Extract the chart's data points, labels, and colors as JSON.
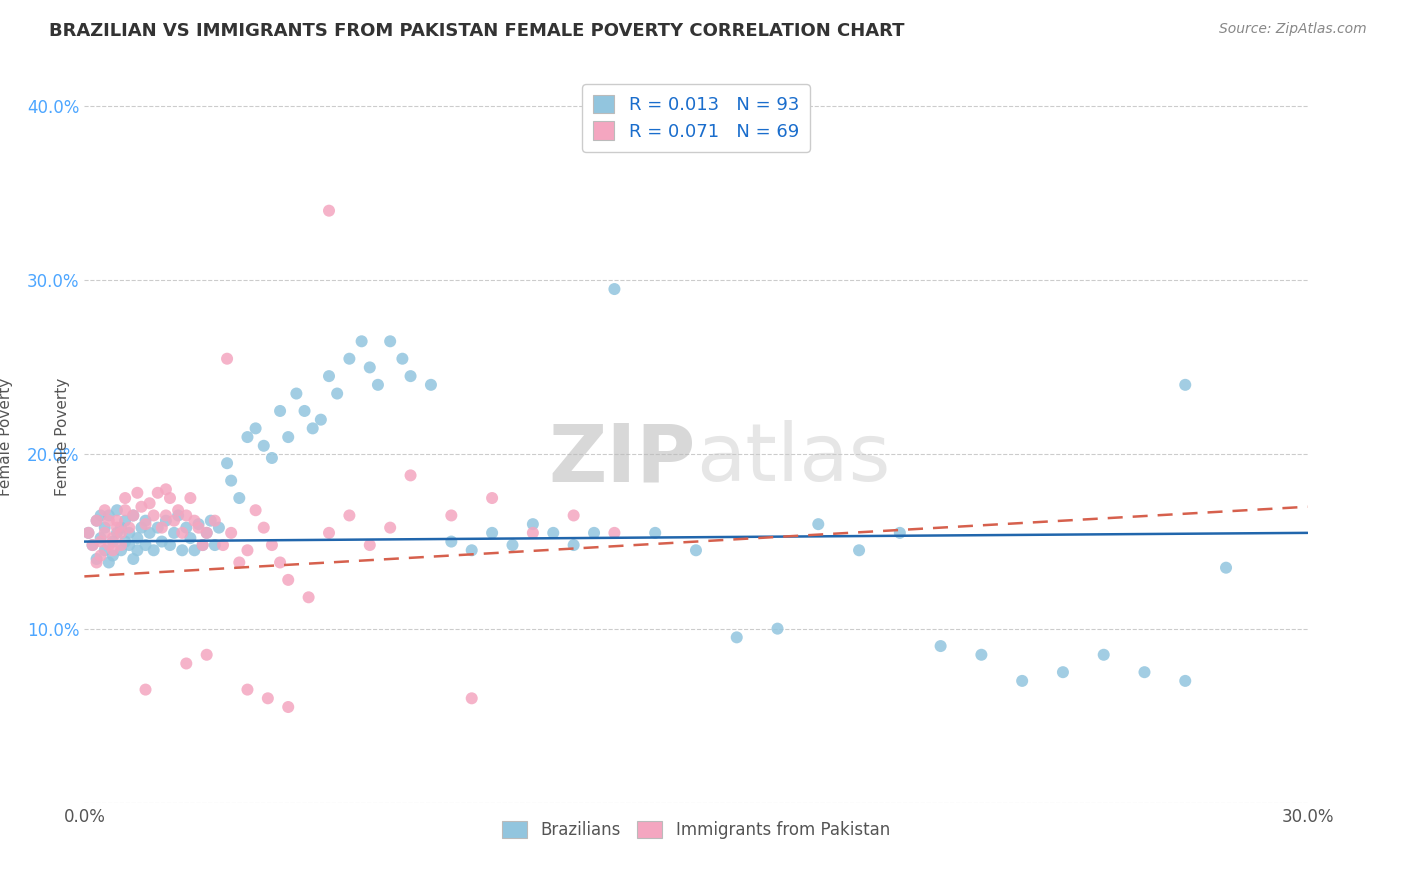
{
  "title": "BRAZILIAN VS IMMIGRANTS FROM PAKISTAN FEMALE POVERTY CORRELATION CHART",
  "source": "Source: ZipAtlas.com",
  "ylabel": "Female Poverty",
  "xlim": [
    0.0,
    0.3
  ],
  "ylim": [
    0.0,
    0.42
  ],
  "xtick_positions": [
    0.0,
    0.05,
    0.1,
    0.15,
    0.2,
    0.25,
    0.3
  ],
  "xtick_labels": [
    "0.0%",
    "",
    "",
    "",
    "",
    "",
    "30.0%"
  ],
  "ytick_positions": [
    0.0,
    0.1,
    0.2,
    0.3,
    0.4
  ],
  "ytick_labels": [
    "",
    "10.0%",
    "20.0%",
    "30.0%",
    "40.0%"
  ],
  "legend_labels": [
    "Brazilians",
    "Immigrants from Pakistan"
  ],
  "r_brazilian": 0.013,
  "n_brazilian": 93,
  "r_pakistan": 0.071,
  "n_pakistan": 69,
  "blue_color": "#92c5de",
  "pink_color": "#f4a6c0",
  "blue_line_color": "#2166ac",
  "pink_line_color": "#d6604d",
  "bg_color": "#ffffff",
  "grid_color": "#cccccc",
  "title_color": "#333333",
  "source_color": "#888888",
  "tick_color_y": "#4da6ff",
  "tick_color_x": "#555555",
  "ylabel_color": "#555555",
  "watermark_color": "#d0d0d0",
  "brazilians_x": [
    0.001,
    0.002,
    0.003,
    0.003,
    0.004,
    0.004,
    0.005,
    0.005,
    0.006,
    0.006,
    0.007,
    0.007,
    0.008,
    0.008,
    0.009,
    0.009,
    0.01,
    0.01,
    0.011,
    0.011,
    0.012,
    0.012,
    0.013,
    0.013,
    0.014,
    0.015,
    0.015,
    0.016,
    0.017,
    0.018,
    0.019,
    0.02,
    0.021,
    0.022,
    0.023,
    0.024,
    0.025,
    0.026,
    0.027,
    0.028,
    0.029,
    0.03,
    0.031,
    0.032,
    0.033,
    0.035,
    0.036,
    0.038,
    0.04,
    0.042,
    0.044,
    0.046,
    0.048,
    0.05,
    0.052,
    0.054,
    0.056,
    0.058,
    0.06,
    0.062,
    0.065,
    0.068,
    0.07,
    0.072,
    0.075,
    0.078,
    0.08,
    0.085,
    0.09,
    0.095,
    0.1,
    0.105,
    0.11,
    0.115,
    0.12,
    0.125,
    0.13,
    0.14,
    0.15,
    0.16,
    0.17,
    0.18,
    0.19,
    0.2,
    0.21,
    0.22,
    0.23,
    0.24,
    0.25,
    0.26,
    0.27,
    0.28,
    0.27
  ],
  "brazilians_y": [
    0.155,
    0.148,
    0.162,
    0.14,
    0.152,
    0.165,
    0.145,
    0.158,
    0.138,
    0.165,
    0.15,
    0.142,
    0.155,
    0.168,
    0.145,
    0.158,
    0.15,
    0.162,
    0.148,
    0.155,
    0.14,
    0.165,
    0.152,
    0.145,
    0.158,
    0.162,
    0.148,
    0.155,
    0.145,
    0.158,
    0.15,
    0.162,
    0.148,
    0.155,
    0.165,
    0.145,
    0.158,
    0.152,
    0.145,
    0.16,
    0.148,
    0.155,
    0.162,
    0.148,
    0.158,
    0.195,
    0.185,
    0.175,
    0.21,
    0.215,
    0.205,
    0.198,
    0.225,
    0.21,
    0.235,
    0.225,
    0.215,
    0.22,
    0.245,
    0.235,
    0.255,
    0.265,
    0.25,
    0.24,
    0.265,
    0.255,
    0.245,
    0.24,
    0.15,
    0.145,
    0.155,
    0.148,
    0.16,
    0.155,
    0.148,
    0.155,
    0.295,
    0.155,
    0.145,
    0.095,
    0.1,
    0.16,
    0.145,
    0.155,
    0.09,
    0.085,
    0.07,
    0.075,
    0.085,
    0.075,
    0.07,
    0.135,
    0.24
  ],
  "pakistan_x": [
    0.001,
    0.002,
    0.003,
    0.003,
    0.004,
    0.004,
    0.005,
    0.005,
    0.006,
    0.006,
    0.007,
    0.007,
    0.008,
    0.008,
    0.009,
    0.009,
    0.01,
    0.01,
    0.011,
    0.012,
    0.013,
    0.014,
    0.015,
    0.016,
    0.017,
    0.018,
    0.019,
    0.02,
    0.021,
    0.022,
    0.023,
    0.024,
    0.025,
    0.026,
    0.027,
    0.028,
    0.029,
    0.03,
    0.032,
    0.034,
    0.036,
    0.038,
    0.04,
    0.042,
    0.044,
    0.046,
    0.048,
    0.05,
    0.055,
    0.06,
    0.065,
    0.07,
    0.075,
    0.08,
    0.09,
    0.095,
    0.1,
    0.11,
    0.12,
    0.13,
    0.06,
    0.03,
    0.025,
    0.045,
    0.035,
    0.04,
    0.05,
    0.02,
    0.015
  ],
  "pakistan_y": [
    0.155,
    0.148,
    0.138,
    0.162,
    0.15,
    0.142,
    0.155,
    0.168,
    0.148,
    0.162,
    0.152,
    0.145,
    0.158,
    0.162,
    0.148,
    0.155,
    0.168,
    0.175,
    0.158,
    0.165,
    0.178,
    0.17,
    0.16,
    0.172,
    0.165,
    0.178,
    0.158,
    0.165,
    0.175,
    0.162,
    0.168,
    0.155,
    0.165,
    0.175,
    0.162,
    0.158,
    0.148,
    0.155,
    0.162,
    0.148,
    0.155,
    0.138,
    0.145,
    0.168,
    0.158,
    0.148,
    0.138,
    0.128,
    0.118,
    0.155,
    0.165,
    0.148,
    0.158,
    0.188,
    0.165,
    0.06,
    0.175,
    0.155,
    0.165,
    0.155,
    0.34,
    0.085,
    0.08,
    0.06,
    0.255,
    0.065,
    0.055,
    0.18,
    0.065
  ],
  "blue_trend_x": [
    0.0,
    0.3
  ],
  "blue_trend_y": [
    0.15,
    0.155
  ],
  "pink_trend_x": [
    0.0,
    0.3
  ],
  "pink_trend_y": [
    0.13,
    0.17
  ]
}
